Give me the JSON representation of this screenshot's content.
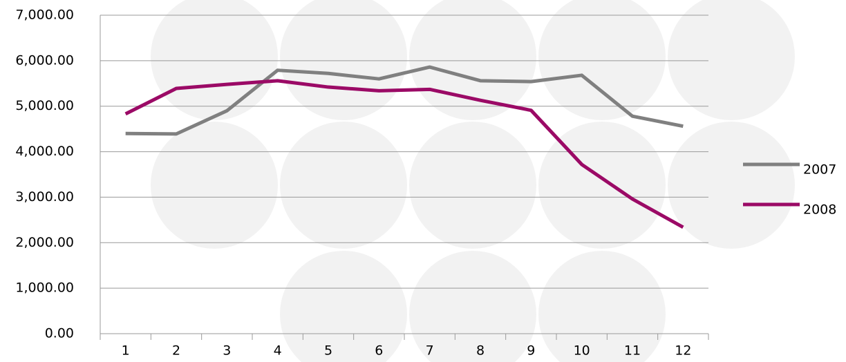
{
  "chart_data": {
    "type": "line",
    "categories": [
      "1",
      "2",
      "3",
      "4",
      "5",
      "6",
      "7",
      "8",
      "9",
      "10",
      "11",
      "12"
    ],
    "series": [
      {
        "name": "2007",
        "color": "#808080",
        "values": [
          4400,
          4390,
          4900,
          5790,
          5720,
          5600,
          5860,
          5560,
          5540,
          5680,
          4780,
          4560
        ]
      },
      {
        "name": "2008",
        "color": "#9b0a66",
        "values": [
          4830,
          5390,
          5480,
          5560,
          5420,
          5340,
          5370,
          5130,
          4910,
          3720,
          2960,
          2340
        ]
      }
    ],
    "ylim": [
      0,
      7000
    ],
    "yticks": [
      {
        "value": 0,
        "label": "0.00"
      },
      {
        "value": 1000,
        "label": "1,000.00"
      },
      {
        "value": 2000,
        "label": "2,000.00"
      },
      {
        "value": 3000,
        "label": "3,000.00"
      },
      {
        "value": 4000,
        "label": "4,000.00"
      },
      {
        "value": 5000,
        "label": "5,000.00"
      },
      {
        "value": 6000,
        "label": "6,000.00"
      },
      {
        "value": 7000,
        "label": "7,000.00"
      }
    ],
    "grid": true,
    "legend": "right"
  }
}
